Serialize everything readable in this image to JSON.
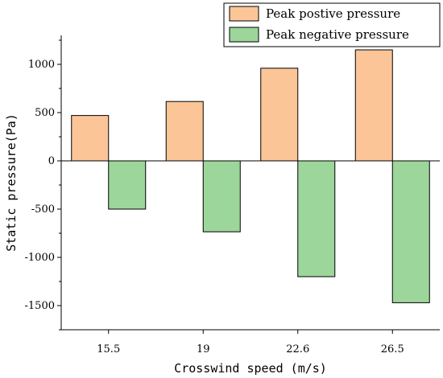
{
  "chart_data": {
    "type": "bar",
    "title": "",
    "xlabel": "Crosswind speed (m/s)",
    "ylabel": "Static pressure(Pa)",
    "categories": [
      "15.5",
      "19",
      "22.6",
      "26.5"
    ],
    "series": [
      {
        "name": "Peak postive pressure",
        "values": [
          470,
          615,
          960,
          1150
        ],
        "color": "#fbc597"
      },
      {
        "name": "Peak negative pressure",
        "values": [
          -500,
          -735,
          -1200,
          -1470
        ],
        "color": "#9dd69a"
      }
    ],
    "ylim": [
      -1750,
      1300
    ],
    "yticks": [
      -1500,
      -1000,
      -500,
      0,
      500,
      1000
    ],
    "grid": false,
    "legend_position": "top-right"
  }
}
